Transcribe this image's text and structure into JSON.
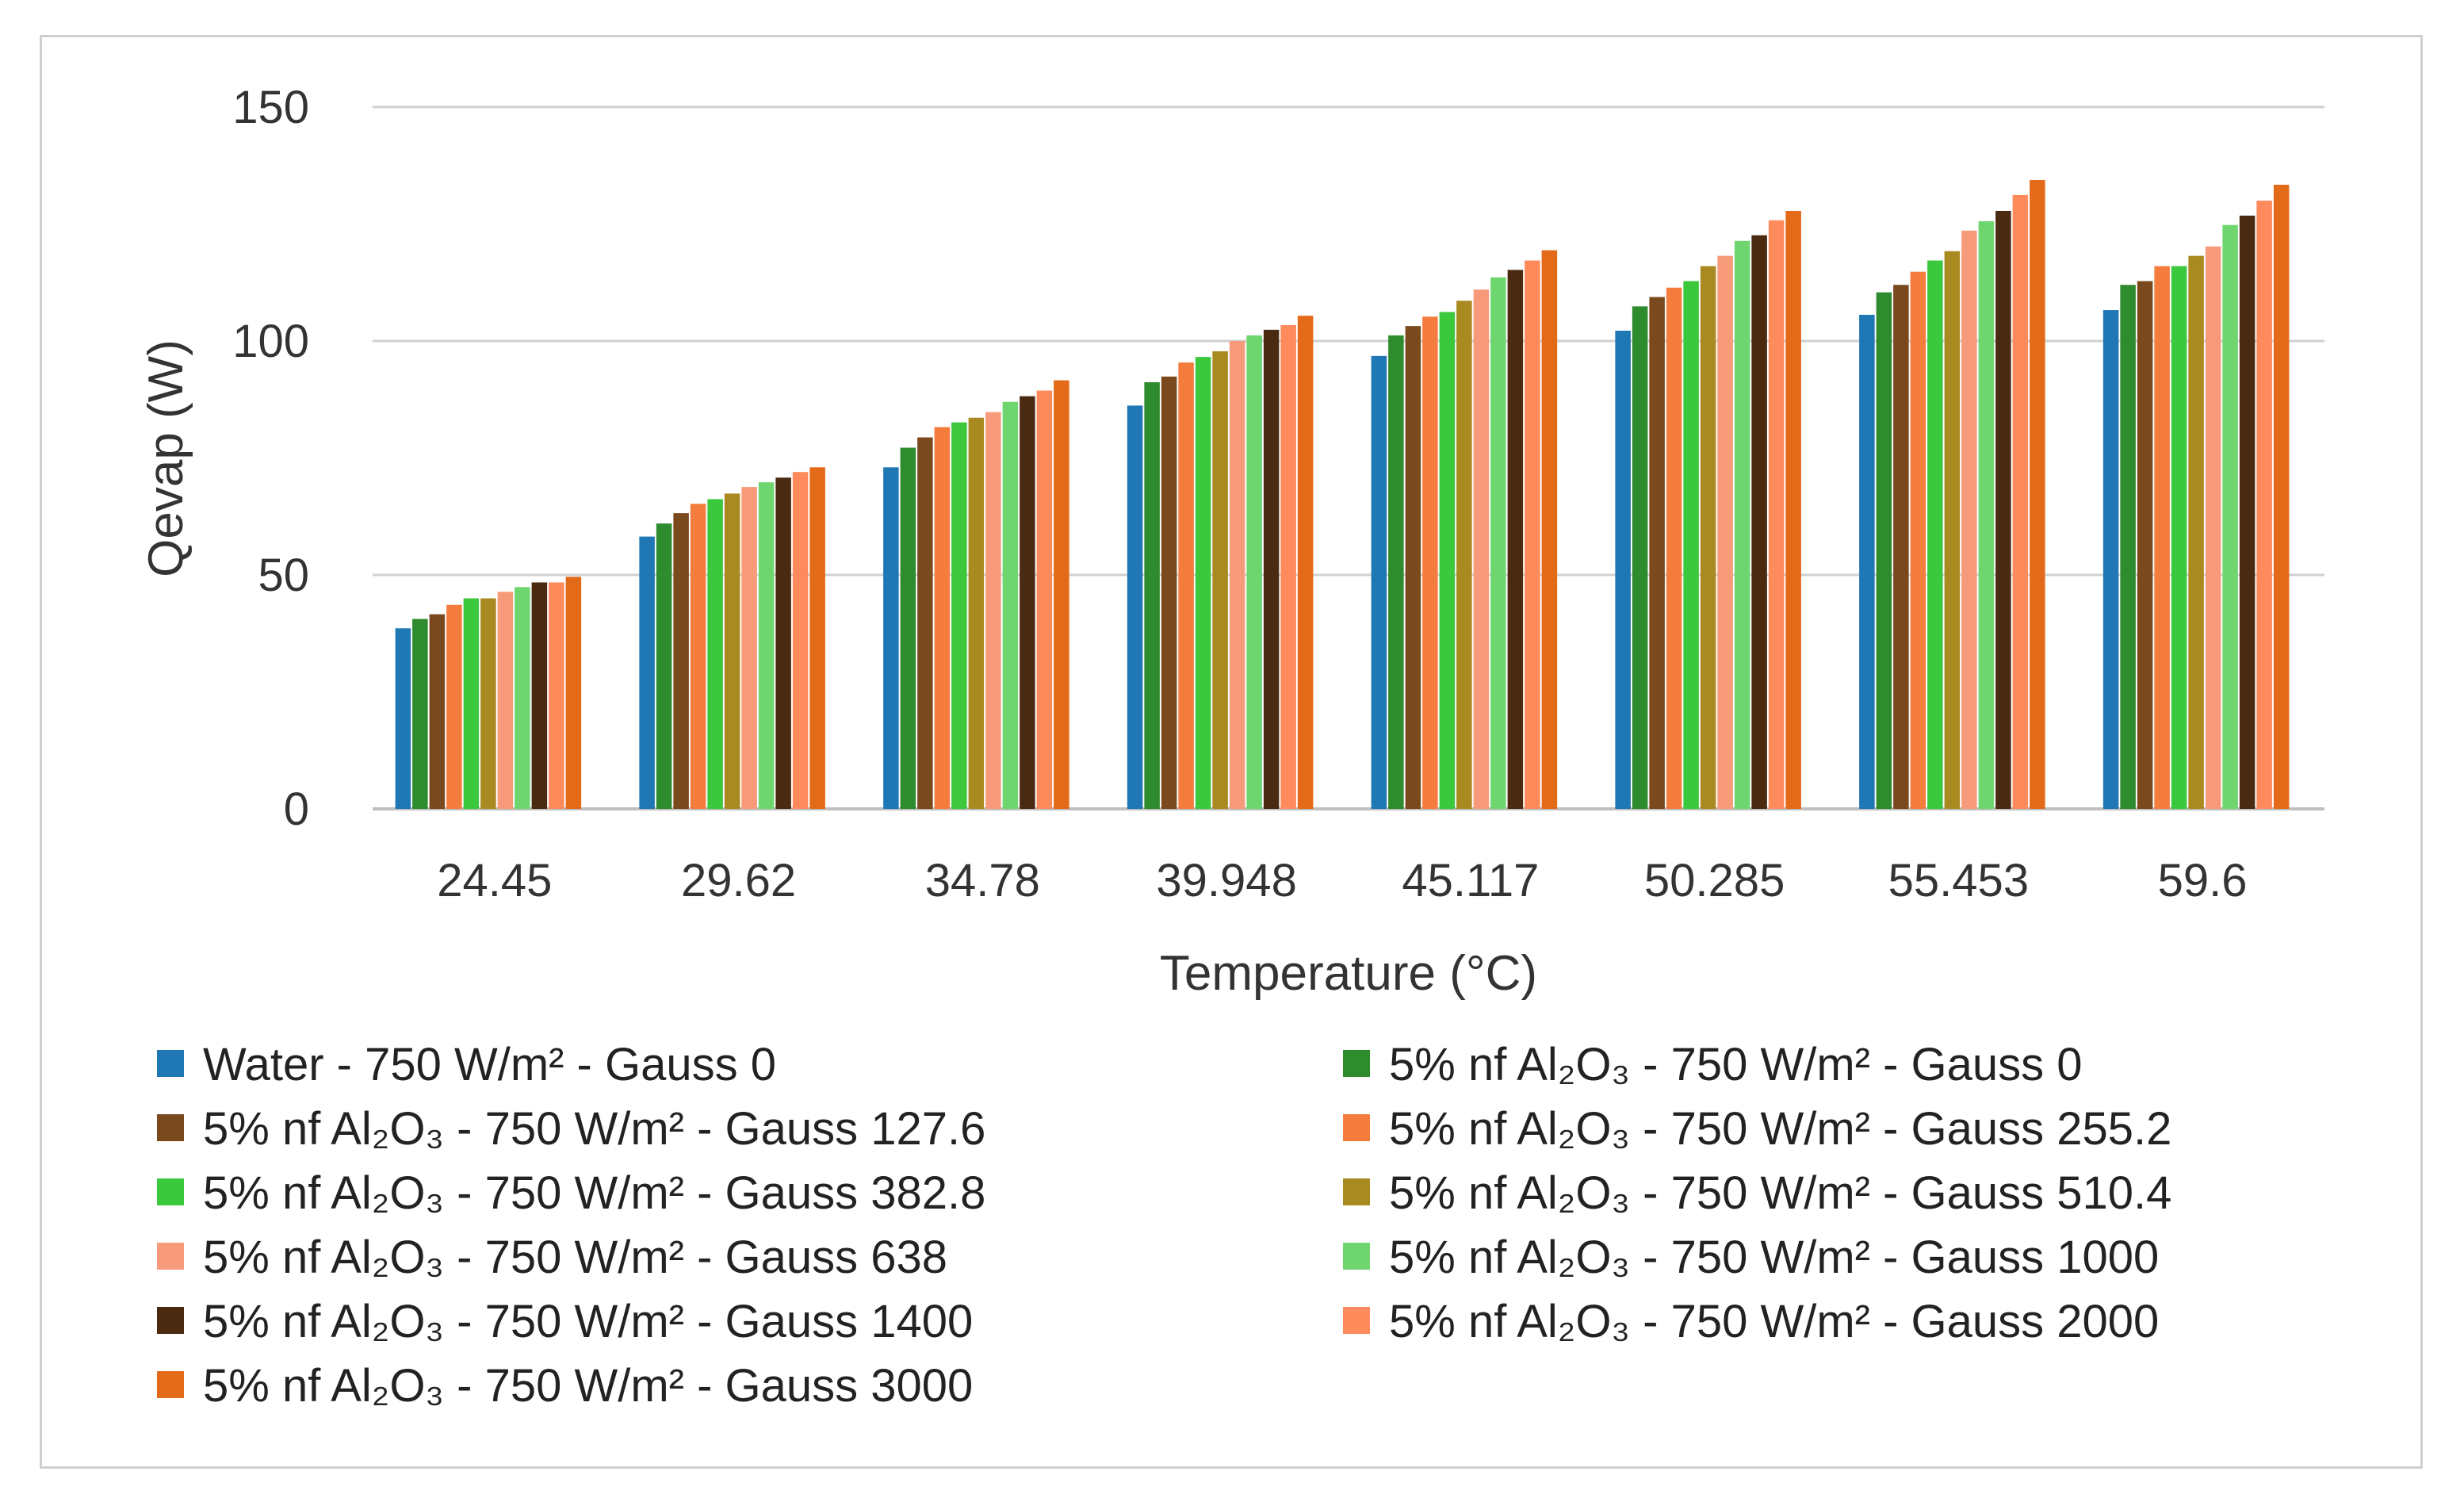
{
  "chart_data": {
    "type": "bar",
    "title": "",
    "xlabel": "Temperature  (°C)",
    "ylabel": "Qevap (W)",
    "ylim": [
      0,
      150
    ],
    "yticks": [
      "0",
      "50",
      "100",
      "150"
    ],
    "grid": true,
    "legend_position": "bottom",
    "categories": [
      "24.45",
      "29.62",
      "34.78",
      "39.948",
      "45.117",
      "50.285",
      "55.453",
      "59.6"
    ],
    "series": [
      {
        "name": "Water - 750 W/m² - Gauss 0",
        "color": "#1f77b4",
        "values": [
          38.6,
          58.2,
          73.0,
          86.2,
          96.8,
          102.2,
          105.6,
          106.6
        ]
      },
      {
        "name": "5% nf Al₂O₃ - 750 W/m² - Gauss 0",
        "color": "#2e8b2e",
        "values": [
          40.6,
          61.0,
          77.2,
          91.2,
          101.2,
          107.4,
          110.4,
          112.0
        ]
      },
      {
        "name": "5% nf Al₂O₃ - 750 W/m² - Gauss 127.6",
        "color": "#7a4a1e",
        "values": [
          41.6,
          63.2,
          79.4,
          92.4,
          103.2,
          109.4,
          112.0,
          112.8
        ]
      },
      {
        "name": "5% nf Al₂O₃ - 750 W/m² - Gauss 255.2",
        "color": "#f47c3c",
        "values": [
          43.6,
          65.2,
          81.6,
          95.4,
          105.2,
          111.4,
          114.8,
          116.0
        ]
      },
      {
        "name": "5% nf Al₂O₃ - 750 W/m² - Gauss 382.8",
        "color": "#3cc83c",
        "values": [
          45.0,
          66.2,
          82.6,
          96.6,
          106.2,
          112.8,
          117.2,
          116.0
        ]
      },
      {
        "name": "5% nf Al₂O₃ - 750 W/m² - Gauss 510.4",
        "color": "#a88a20",
        "values": [
          45.0,
          67.4,
          83.6,
          97.8,
          108.6,
          116.0,
          119.2,
          118.2
        ]
      },
      {
        "name": "5% nf Al₂O₃ - 750 W/m² - Gauss 638",
        "color": "#f79a7a",
        "values": [
          46.4,
          68.8,
          84.8,
          100.0,
          111.0,
          118.2,
          123.6,
          120.2
        ]
      },
      {
        "name": "5% nf Al₂O₃ - 750 W/m² - Gauss 1000",
        "color": "#6fd66f",
        "values": [
          47.4,
          69.8,
          87.0,
          101.2,
          113.6,
          121.4,
          125.6,
          124.8
        ]
      },
      {
        "name": "5% nf Al₂O₃ - 750 W/m² - Gauss 1400",
        "color": "#4a2a10",
        "values": [
          48.4,
          70.8,
          88.2,
          102.4,
          115.2,
          122.6,
          127.8,
          126.8
        ]
      },
      {
        "name": "5% nf Al₂O₃ - 750 W/m² - Gauss 2000",
        "color": "#ff8a5c",
        "values": [
          48.4,
          72.0,
          89.4,
          103.4,
          117.2,
          125.8,
          131.2,
          130.0
        ]
      },
      {
        "name": "5% nf Al₂O₃ - 750 W/m² - Gauss 3000",
        "color": "#e36a18",
        "values": [
          49.6,
          73.0,
          91.6,
          105.4,
          119.4,
          127.8,
          134.4,
          133.4
        ]
      }
    ]
  }
}
